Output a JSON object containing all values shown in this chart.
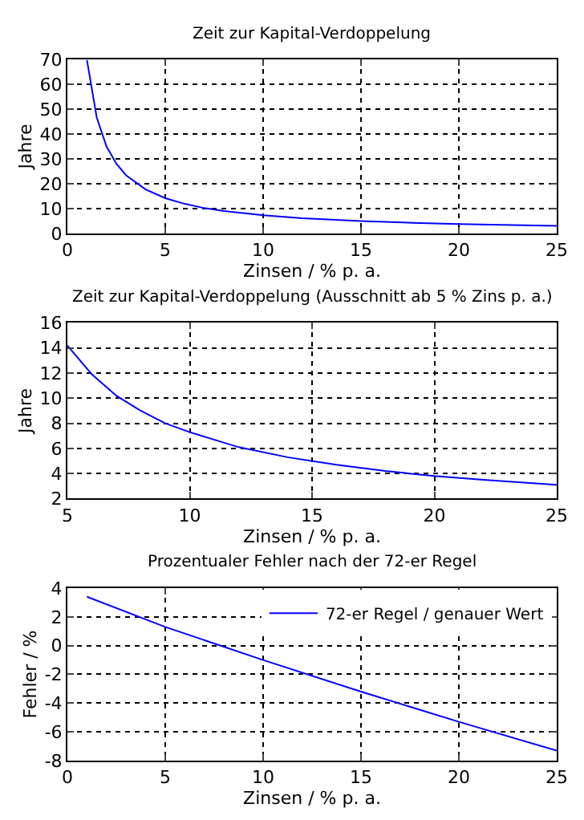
{
  "chart_data": [
    {
      "type": "line",
      "title": "Zeit zur Kapital-Verdoppelung",
      "xlabel": "Zinsen / % p. a.",
      "ylabel": "Jahre",
      "x": [
        1,
        1.5,
        2,
        2.5,
        3,
        4,
        5,
        6,
        7,
        8,
        10,
        12,
        15,
        18,
        20,
        25
      ],
      "series": [
        {
          "color": "#0000ff",
          "values": [
            69.7,
            46.6,
            35.0,
            28.1,
            23.4,
            17.7,
            14.2,
            11.9,
            10.2,
            9.0,
            7.3,
            6.1,
            5.0,
            4.2,
            3.8,
            3.1
          ]
        }
      ],
      "xlim": [
        0,
        25
      ],
      "xticks": [
        0,
        5,
        10,
        15,
        20,
        25
      ],
      "ylim": [
        0,
        70
      ],
      "yticks": [
        0,
        10,
        20,
        30,
        40,
        50,
        60,
        70
      ],
      "grid": true,
      "legend": false
    },
    {
      "type": "line",
      "title": "Zeit zur Kapital-Verdoppelung (Ausschnitt ab 5 % Zins p. a.)",
      "xlabel": "Zinsen / % p. a.",
      "ylabel": "Jahre",
      "x": [
        5,
        6,
        7,
        8,
        9,
        10,
        12,
        14,
        16,
        18,
        20,
        22,
        25
      ],
      "series": [
        {
          "color": "#0000ff",
          "values": [
            14.2,
            11.9,
            10.2,
            9.0,
            8.0,
            7.3,
            6.1,
            5.3,
            4.7,
            4.2,
            3.8,
            3.5,
            3.1
          ]
        }
      ],
      "xlim": [
        5,
        25
      ],
      "xticks": [
        5,
        10,
        15,
        20,
        25
      ],
      "ylim": [
        2,
        16
      ],
      "yticks": [
        2,
        4,
        6,
        8,
        10,
        12,
        14,
        16
      ],
      "grid": true,
      "legend": false
    },
    {
      "type": "line",
      "title": "Prozentualer Fehler nach der 72-er Regel",
      "xlabel": "Zinsen / % p. a.",
      "ylabel": "Fehler / %",
      "x": [
        1,
        5,
        10,
        15,
        20,
        25
      ],
      "series": [
        {
          "name": "72-er Regel / genauer Wert",
          "color": "#0000ff",
          "values": [
            3.4,
            1.3,
            -1.0,
            -3.2,
            -5.3,
            -7.3
          ]
        }
      ],
      "xlim": [
        0,
        25
      ],
      "xticks": [
        0,
        5,
        10,
        15,
        20,
        25
      ],
      "ylim": [
        -8,
        4
      ],
      "yticks": [
        -8,
        -6,
        -4,
        -2,
        0,
        2,
        4
      ],
      "grid": true,
      "legend": "top right"
    }
  ]
}
